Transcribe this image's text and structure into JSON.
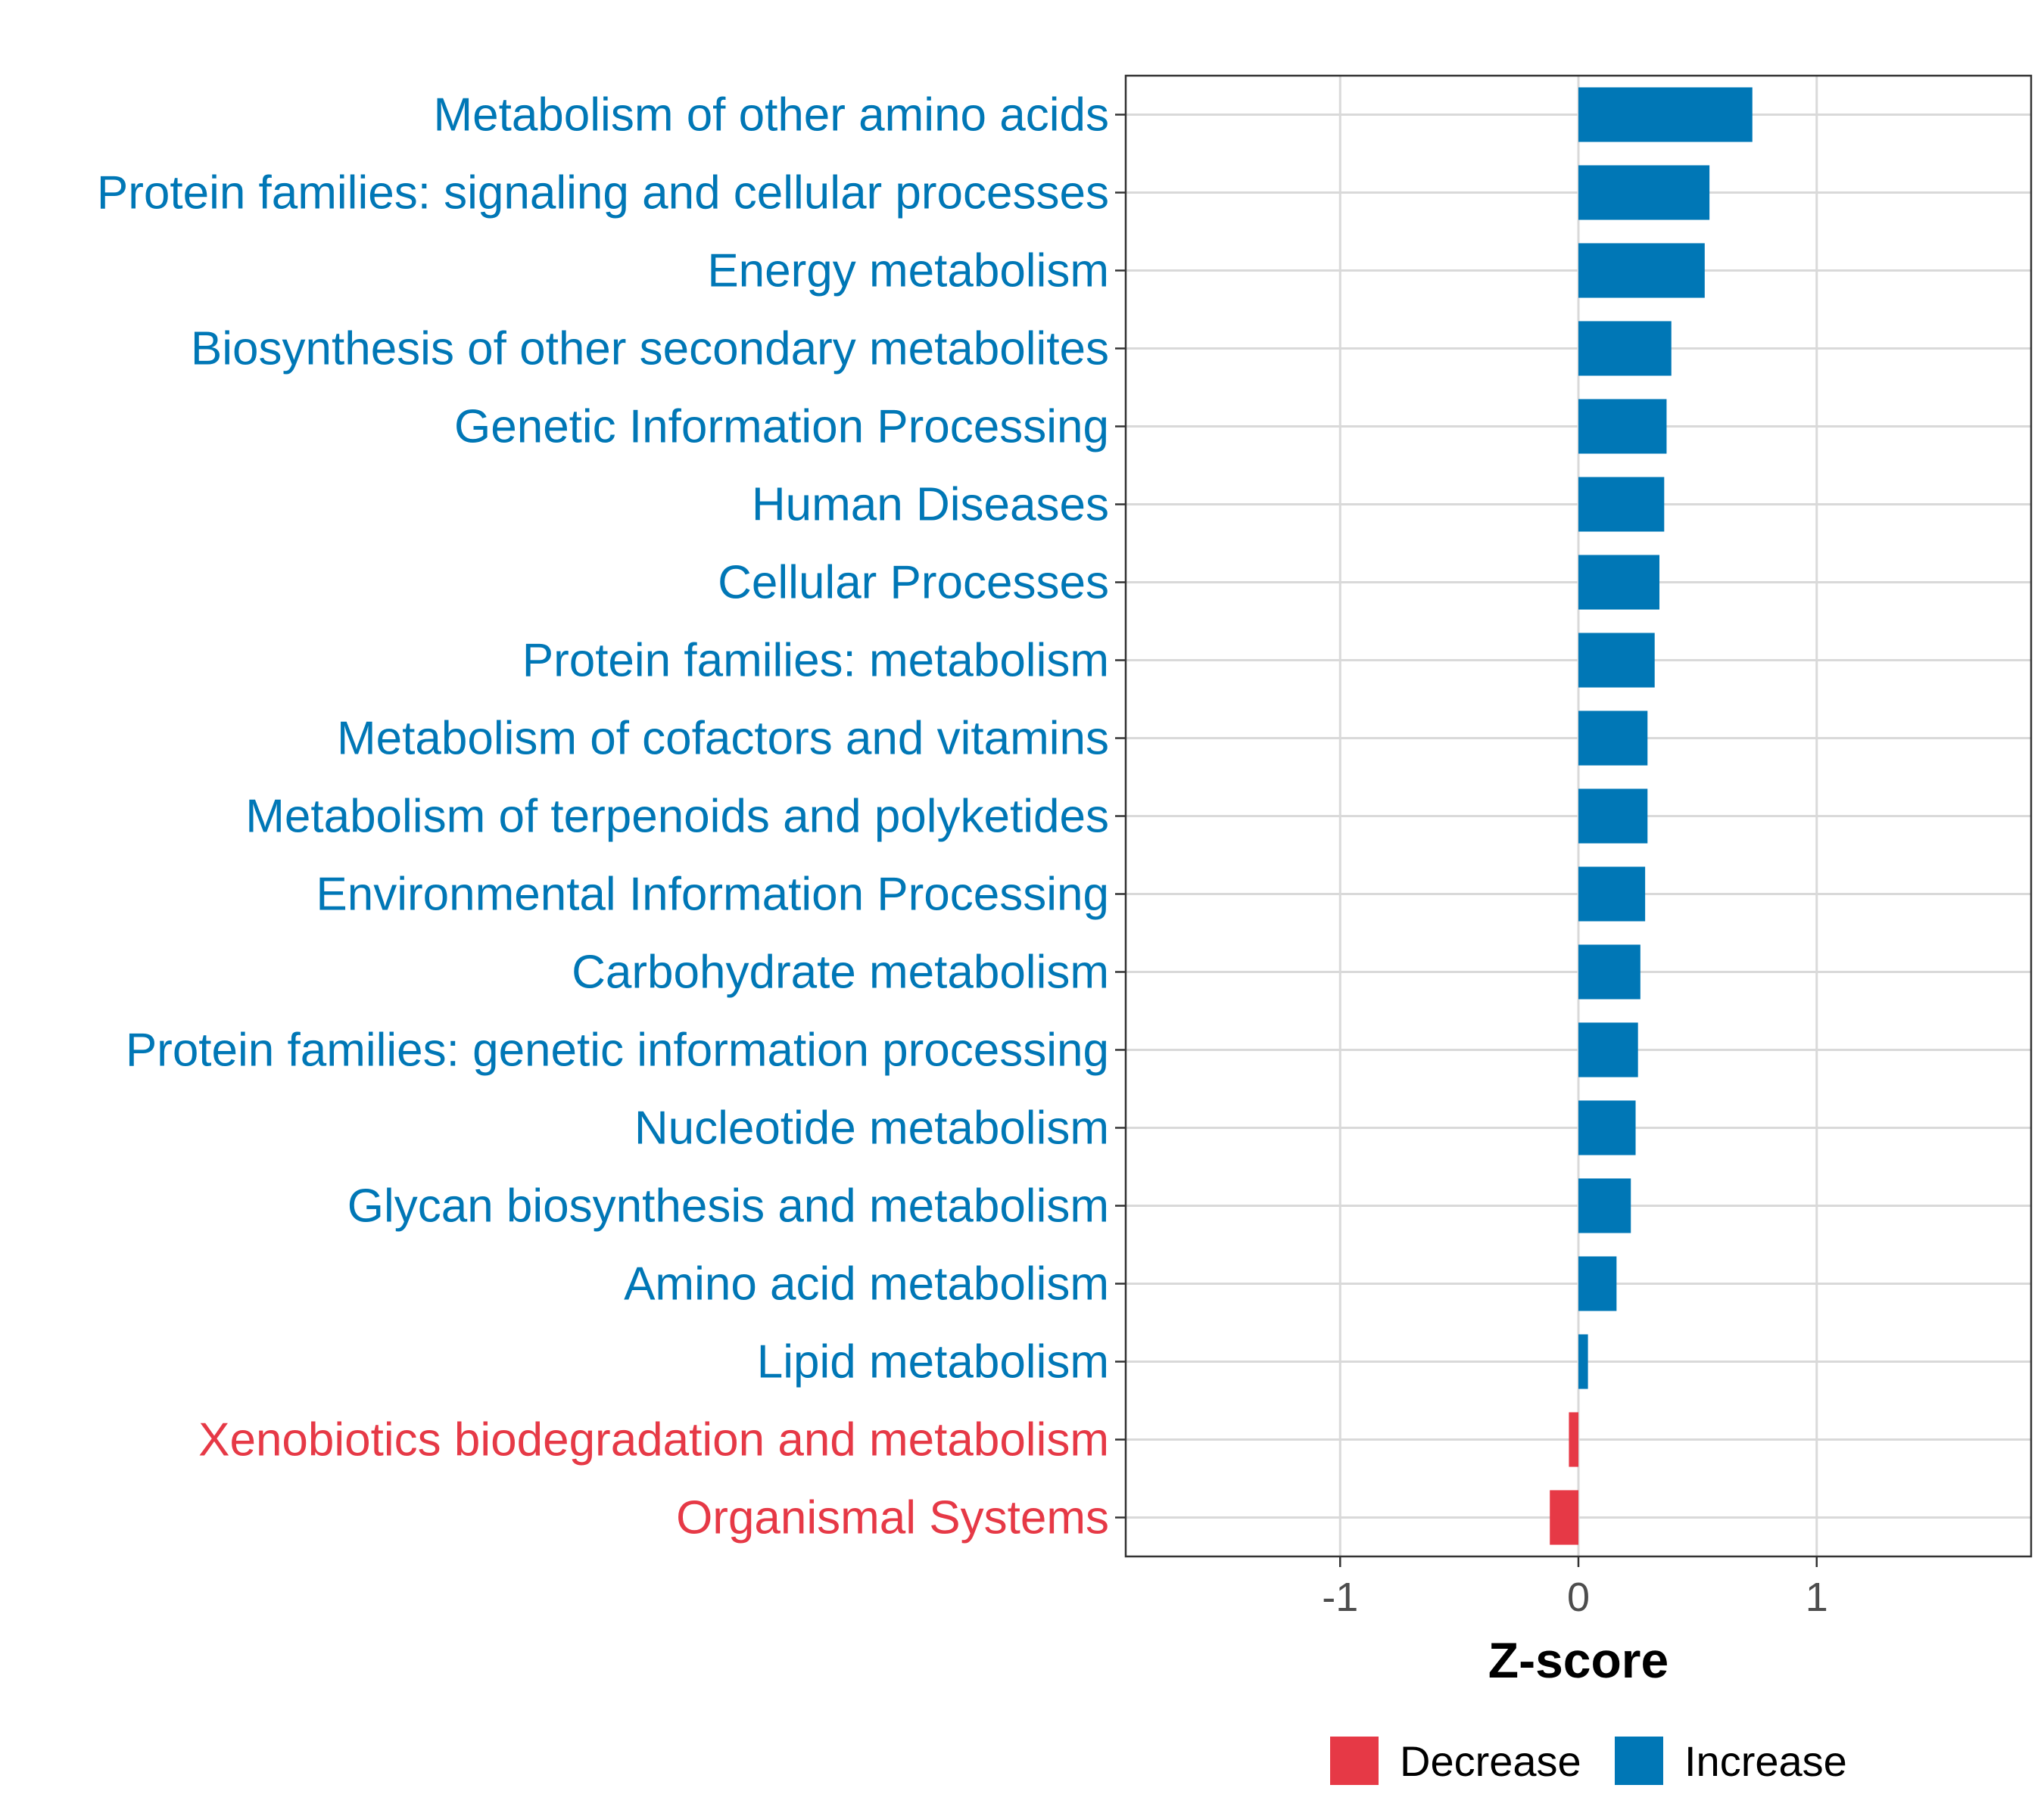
{
  "chart_data": {
    "type": "bar",
    "orientation": "horizontal",
    "categories": [
      "Metabolism of other amino acids",
      "Protein families: signaling and cellular processes",
      "Energy metabolism",
      "Biosynthesis of other secondary metabolites",
      "Genetic Information Processing",
      "Human Diseases",
      "Cellular Processes",
      "Protein families: metabolism",
      "Metabolism of cofactors and vitamins",
      "Metabolism of terpenoids and polyketides",
      "Environmental Information Processing",
      "Carbohydrate metabolism",
      "Protein families: genetic information processing",
      "Nucleotide metabolism",
      "Glycan biosynthesis and metabolism",
      "Amino acid metabolism",
      "Lipid metabolism",
      "Xenobiotics biodegradation and metabolism",
      "Organismal Systems"
    ],
    "values": [
      0.73,
      0.55,
      0.53,
      0.39,
      0.37,
      0.36,
      0.34,
      0.32,
      0.29,
      0.29,
      0.28,
      0.26,
      0.25,
      0.24,
      0.22,
      0.16,
      0.04,
      -0.04,
      -0.12
    ],
    "groups": [
      "Increase",
      "Increase",
      "Increase",
      "Increase",
      "Increase",
      "Increase",
      "Increase",
      "Increase",
      "Increase",
      "Increase",
      "Increase",
      "Increase",
      "Increase",
      "Increase",
      "Increase",
      "Increase",
      "Increase",
      "Decrease",
      "Decrease"
    ],
    "xlabel": "Z-score",
    "ylabel": "",
    "xlim": [
      -1.9,
      1.9
    ],
    "xticks": [
      -1,
      0,
      1
    ],
    "xtick_labels": [
      "-1",
      "0",
      "1"
    ],
    "grid": true,
    "legend": {
      "position": "bottom",
      "entries": [
        {
          "label": "Decrease",
          "color": "#e63946"
        },
        {
          "label": "Increase",
          "color": "#0077b6"
        }
      ]
    },
    "colors": {
      "Increase": "#0077b6",
      "Decrease": "#e63946"
    }
  }
}
